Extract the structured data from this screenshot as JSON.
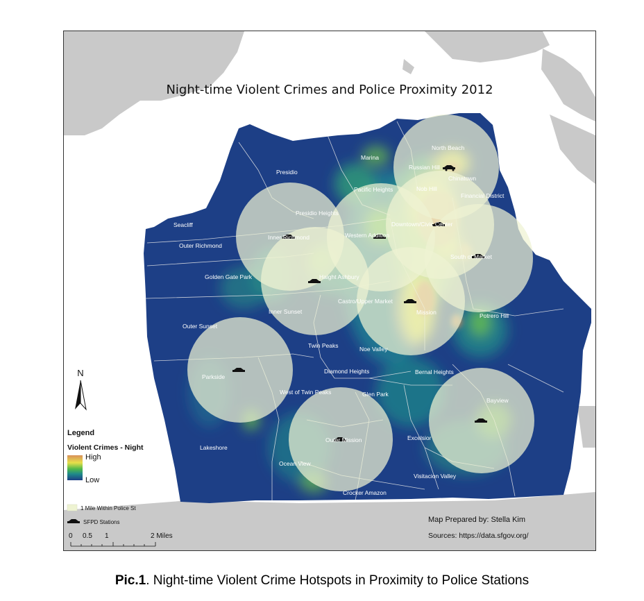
{
  "map": {
    "title": "Night-time Violent Crimes and Police Proximity 2012",
    "north_label": "N",
    "credit": "Map Prepared by: Stella Kim",
    "sources": "Sources: https://data.sfgov.org/"
  },
  "neighborhoods": [
    {
      "name": "North Beach"
    },
    {
      "name": "Marina"
    },
    {
      "name": "Russian Hill"
    },
    {
      "name": "Chinatown"
    },
    {
      "name": "Presidio"
    },
    {
      "name": "Pacific Heights"
    },
    {
      "name": "Nob Hill"
    },
    {
      "name": "Financial District"
    },
    {
      "name": "Presidio Heights"
    },
    {
      "name": "Seacliff"
    },
    {
      "name": "Downtown/Civic Center"
    },
    {
      "name": "Inner Richmond"
    },
    {
      "name": "Western Addition"
    },
    {
      "name": "Outer Richmond"
    },
    {
      "name": "South of Market"
    },
    {
      "name": "Golden Gate Park"
    },
    {
      "name": "Haight Ashbury"
    },
    {
      "name": "Castro/Upper Market"
    },
    {
      "name": "Inner Sunset"
    },
    {
      "name": "Mission"
    },
    {
      "name": "Potrero Hill"
    },
    {
      "name": "Outer Sunset"
    },
    {
      "name": "Twin Peaks"
    },
    {
      "name": "Noe Valley"
    },
    {
      "name": "Diamond Heights"
    },
    {
      "name": "Bernal Heights"
    },
    {
      "name": "Parkside"
    },
    {
      "name": "West of Twin Peaks"
    },
    {
      "name": "Glen Park"
    },
    {
      "name": "Bayview"
    },
    {
      "name": "Outer Mission"
    },
    {
      "name": "Excelsior"
    },
    {
      "name": "Lakeshore"
    },
    {
      "name": "Ocean View"
    },
    {
      "name": "Visitacion Valley"
    },
    {
      "name": "Crocker Amazon"
    }
  ],
  "legend": {
    "title": "Legend",
    "layer_title": "Violent Crimes - Night",
    "high": "High",
    "low": "Low",
    "buffer_label": "1 Mile Within Police St",
    "stations_label": "SFPD Stations",
    "scale": [
      "0",
      "0.5",
      "1",
      "2 Miles"
    ],
    "colors": {
      "high": "#d9905a",
      "mid": "#e6e04a",
      "green": "#4fb84a",
      "teal": "#1f8a8a",
      "low": "#1d3f86"
    }
  },
  "caption": {
    "label": "Pic.1",
    "text": ". Night-time Violent Crime Hotspots in Proximity to Police Stations"
  }
}
